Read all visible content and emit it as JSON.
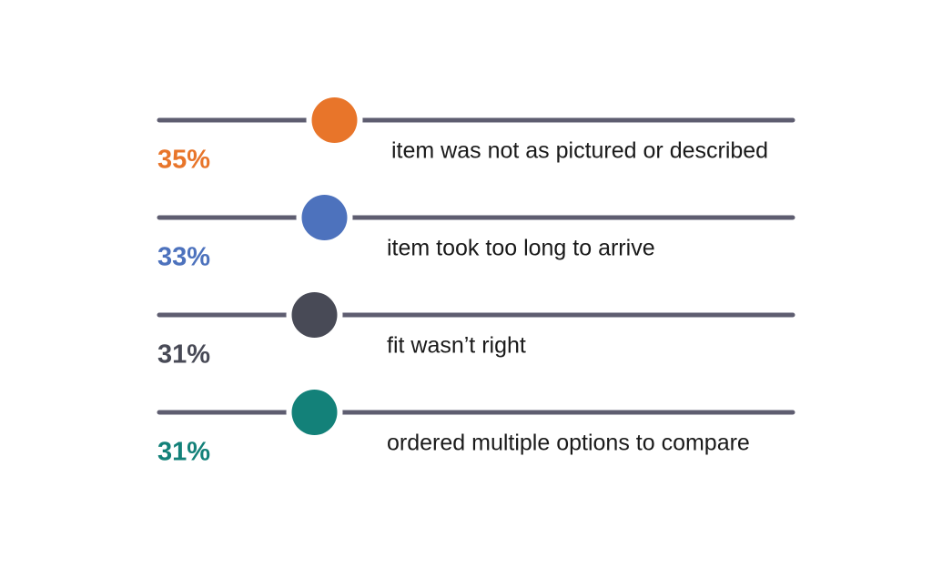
{
  "chart_data": {
    "type": "bar",
    "categories": [
      "item was not as pictured or described",
      "item took too long to arrive",
      "fit wasn’t right",
      "ordered multiple options to compare"
    ],
    "values": [
      35,
      33,
      31,
      31
    ],
    "value_labels": [
      "35%",
      "33%",
      "31%",
      "31%"
    ],
    "colors": [
      "#e8752a",
      "#4d72bd",
      "#484a56",
      "#138179"
    ],
    "track_color": "#5e5d70",
    "xlim": [
      0,
      100
    ],
    "title": "",
    "xlabel": "",
    "ylabel": "",
    "grid": false,
    "legend": "none"
  }
}
